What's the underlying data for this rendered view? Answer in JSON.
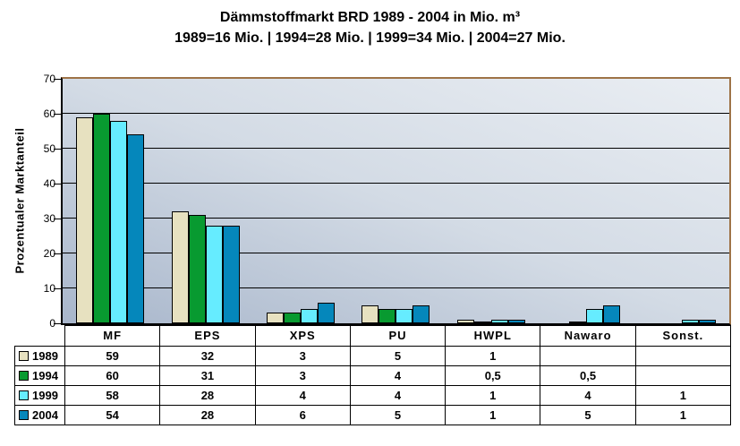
{
  "chart_data": {
    "type": "bar",
    "title": "Dämmstoffmarkt BRD 1989 - 2004 in Mio. m³",
    "subtitle": "1989=16 Mio. | 1994=28 Mio. | 1999=34 Mio. | 2004=27 Mio.",
    "ylabel": "Prozentualer Marktanteil",
    "ylim": [
      0,
      70
    ],
    "ytick_step": 10,
    "grid": true,
    "legend_position": "table-rows-left",
    "decimal_separator": ",",
    "categories": [
      "MF",
      "EPS",
      "XPS",
      "PU",
      "HWPL",
      "Nawaro",
      "Sonst."
    ],
    "series": [
      {
        "name": "1989",
        "color": "#E7E1C0",
        "values": [
          59,
          32,
          3,
          5,
          1,
          null,
          null
        ]
      },
      {
        "name": "1994",
        "color": "#089A30",
        "values": [
          60,
          31,
          3,
          4,
          0.5,
          0.5,
          null
        ]
      },
      {
        "name": "1999",
        "color": "#66ECFF",
        "values": [
          58,
          28,
          4,
          4,
          1,
          4,
          1
        ]
      },
      {
        "name": "2004",
        "color": "#0587BB",
        "values": [
          54,
          28,
          6,
          5,
          1,
          5,
          1
        ]
      }
    ]
  },
  "style": {
    "background": "#FFFFFF",
    "text_color": "#000000",
    "bar_border_color": "#000000",
    "grid_color": "#000000",
    "axis_color": "#000000",
    "plot_frame_brown": "#9E7347",
    "plot_gradient_dark": "#A8B6CB",
    "plot_gradient_mid": "#D3DBE5",
    "plot_gradient_light": "#EAEEF3"
  }
}
